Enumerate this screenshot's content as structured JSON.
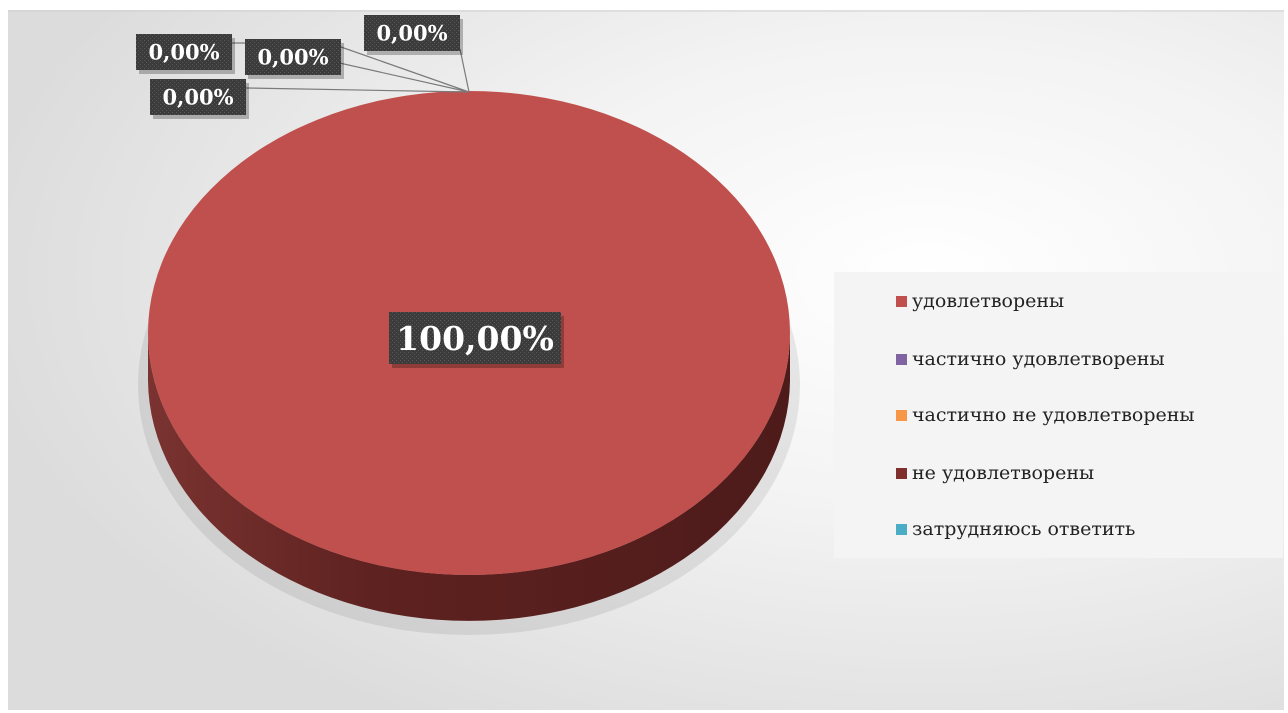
{
  "chart_data": {
    "type": "pie",
    "title": "",
    "categories": [
      "удовлетворены",
      "частично удовлетворены",
      "частично не удовлетворены",
      "не удовлетворены",
      "затрудняюсь ответить"
    ],
    "values": [
      100,
      0,
      0,
      0,
      0
    ],
    "data_labels": [
      "100,00%",
      "0,00%",
      "0,00%",
      "0,00%",
      "0,00%"
    ],
    "colors": [
      "#c0504d",
      "#8064a2",
      "#f79646",
      "#7f2f2c",
      "#4bacc6"
    ],
    "style": "3d",
    "legend_position": "right"
  }
}
